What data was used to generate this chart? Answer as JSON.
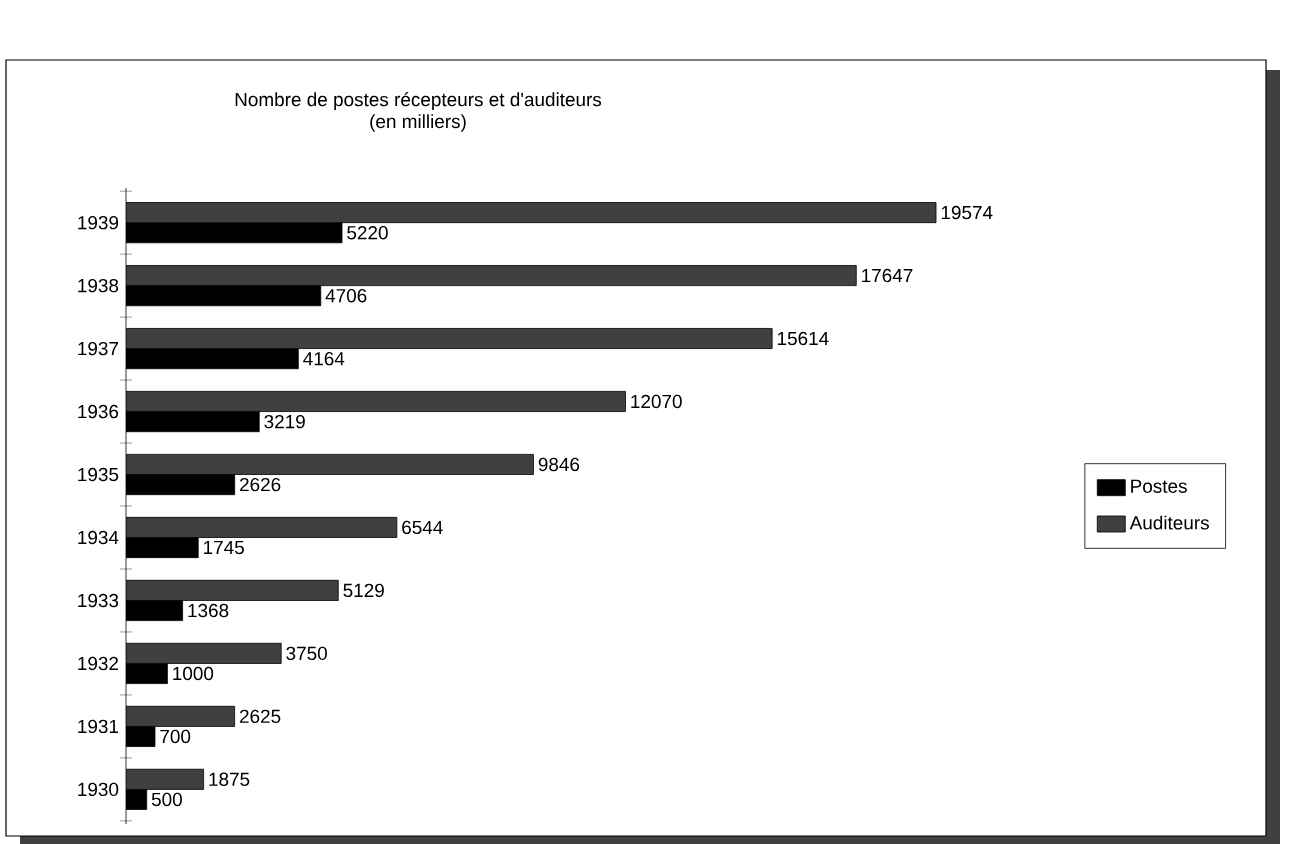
{
  "chart_data": {
    "type": "bar",
    "orientation": "horizontal",
    "title": "Nombre de postes récepteurs et d'auditeurs",
    "subtitle": "(en milliers)",
    "categories": [
      "1939",
      "1938",
      "1937",
      "1936",
      "1935",
      "1934",
      "1933",
      "1932",
      "1931",
      "1930"
    ],
    "series": [
      {
        "name": "Postes",
        "color": "#000000",
        "values": [
          5220,
          4706,
          4164,
          3219,
          2626,
          1745,
          1368,
          1000,
          700,
          500
        ]
      },
      {
        "name": "Auditeurs",
        "color": "#404040",
        "values": [
          19574,
          17647,
          15614,
          12070,
          9846,
          6544,
          5129,
          3750,
          2625,
          1875
        ]
      }
    ],
    "data_labels": true,
    "legend": "right"
  }
}
